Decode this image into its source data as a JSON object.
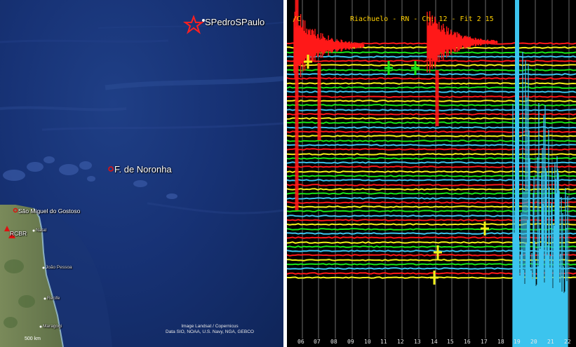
{
  "map": {
    "station_star_label": "SPedroSPaulo",
    "island_label": "F. de Noronha",
    "town_label_1": "São Miguel do Gostoso",
    "station_label": "RCBR",
    "city_natal": "Natal",
    "city_joao_pessoa": "João Pessoa",
    "city_recife": "Recife",
    "city_maragogi": "Maragogi",
    "attribution_line1": "Image Landsat / Copernicus",
    "attribution_line2": "Data SIO, NOAA, U.S. Navy, NGA, GEBCO",
    "scale": "500 km",
    "colors": {
      "ocean": "#173275",
      "land": "#6b7d52",
      "marker": "#e01010"
    }
  },
  "seismogram": {
    "title_left": "/C",
    "title_mid": "Riachuelo - RN - Ch: 12 - Fit 2 15",
    "colors": {
      "red": "#ff1818",
      "green": "#18e818",
      "yellow": "#f2f218",
      "blue": "#3cc4ee",
      "grid": "#9a9a9a"
    },
    "ticks": [
      "06",
      "07",
      "08",
      "09",
      "10",
      "11",
      "12",
      "13",
      "14",
      "15",
      "16",
      "17",
      "18",
      "19",
      "20",
      "21",
      "22"
    ]
  }
}
